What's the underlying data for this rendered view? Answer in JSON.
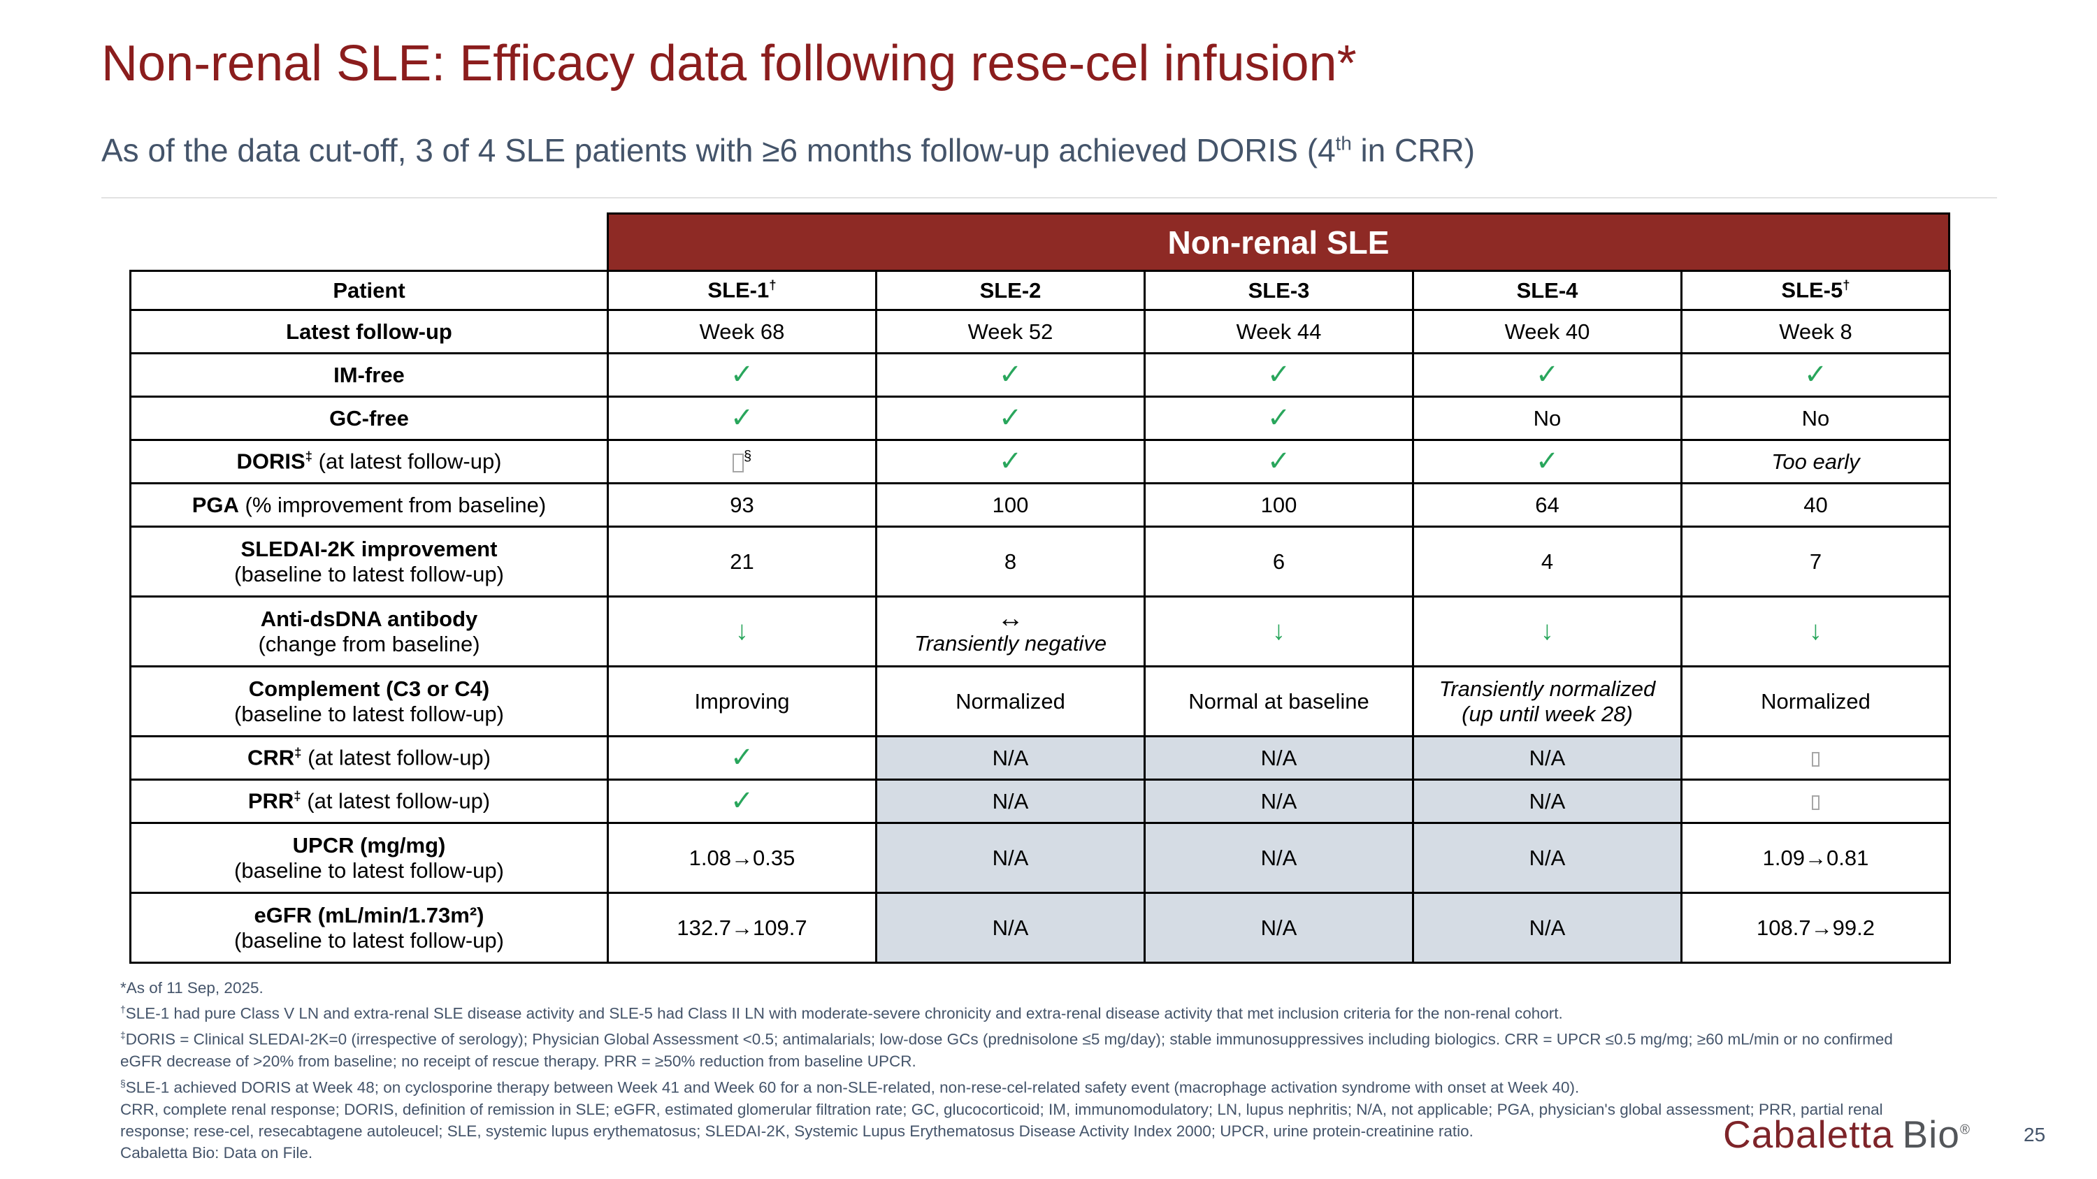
{
  "header": {
    "title": "Non-renal SLE: Efficacy data following rese-cel infusion*",
    "subtitle_pre": "As of the data cut-off, 3 of 4 SLE patients with ≥6 months follow-up achieved DORIS (4",
    "subtitle_sup": "th",
    "subtitle_post": " in CRR)"
  },
  "colors": {
    "title_red": "#8B1D1D",
    "banner_red": "#8E2A25",
    "slate_text": "#44546A",
    "check_green": "#29A65C",
    "na_shade": "#D5DCE4"
  },
  "table": {
    "banner": "Non-renal SLE",
    "columns": [
      {
        "name": "patient",
        "label": "Patient",
        "sup": ""
      },
      {
        "name": "sle-1",
        "label": "SLE-1",
        "sup": "†"
      },
      {
        "name": "sle-2",
        "label": "SLE-2",
        "sup": ""
      },
      {
        "name": "sle-3",
        "label": "SLE-3",
        "sup": ""
      },
      {
        "name": "sle-4",
        "label": "SLE-4",
        "sup": ""
      },
      {
        "name": "sle-5",
        "label": "SLE-5",
        "sup": "†"
      }
    ],
    "rows": [
      {
        "id": "latest-follow-up",
        "tall": false,
        "label": {
          "b": "Latest follow-up",
          "s": "",
          "r": "",
          "r2": ""
        },
        "cells": [
          {
            "t": "text",
            "v": "Week 68"
          },
          {
            "t": "text",
            "v": "Week 52"
          },
          {
            "t": "text",
            "v": "Week 44"
          },
          {
            "t": "text",
            "v": "Week 40"
          },
          {
            "t": "text",
            "v": "Week 8"
          }
        ]
      },
      {
        "id": "im-free",
        "tall": false,
        "label": {
          "b": "IM-free",
          "s": "",
          "r": "",
          "r2": ""
        },
        "cells": [
          {
            "t": "check",
            "v": "✓"
          },
          {
            "t": "check",
            "v": "✓"
          },
          {
            "t": "check",
            "v": "✓"
          },
          {
            "t": "check",
            "v": "✓"
          },
          {
            "t": "check",
            "v": "✓"
          }
        ]
      },
      {
        "id": "gc-free",
        "tall": false,
        "label": {
          "b": "GC-free",
          "s": "",
          "r": "",
          "r2": ""
        },
        "cells": [
          {
            "t": "check",
            "v": "✓"
          },
          {
            "t": "check",
            "v": "✓"
          },
          {
            "t": "check",
            "v": "✓"
          },
          {
            "t": "text",
            "v": "No"
          },
          {
            "t": "text",
            "v": "No"
          }
        ]
      },
      {
        "id": "doris",
        "tall": false,
        "label": {
          "b": "DORIS",
          "s": "‡",
          "r": " (at latest follow-up)",
          "r2": ""
        },
        "cells": [
          {
            "t": "boxsup",
            "v": "□",
            "sup": "§"
          },
          {
            "t": "check",
            "v": "✓"
          },
          {
            "t": "check",
            "v": "✓"
          },
          {
            "t": "check",
            "v": "✓"
          },
          {
            "t": "text",
            "v": "Too early",
            "italic": true
          }
        ]
      },
      {
        "id": "pga",
        "tall": false,
        "label": {
          "b": "PGA",
          "s": "",
          "r": " (% improvement from baseline)",
          "r2": ""
        },
        "cells": [
          {
            "t": "text",
            "v": "93"
          },
          {
            "t": "text",
            "v": "100"
          },
          {
            "t": "text",
            "v": "100"
          },
          {
            "t": "text",
            "v": "64"
          },
          {
            "t": "text",
            "v": "40"
          }
        ]
      },
      {
        "id": "sledai-2k",
        "tall": true,
        "label": {
          "b": "SLEDAI-2K improvement",
          "s": "",
          "r": "",
          "r2": "(baseline to latest follow-up)"
        },
        "cells": [
          {
            "t": "text",
            "v": "21"
          },
          {
            "t": "text",
            "v": "8"
          },
          {
            "t": "text",
            "v": "6"
          },
          {
            "t": "text",
            "v": "4"
          },
          {
            "t": "text",
            "v": "7"
          }
        ]
      },
      {
        "id": "anti-dsdna",
        "tall": true,
        "label": {
          "b": "Anti-dsDNA antibody",
          "s": "",
          "r": "",
          "r2": "(change from baseline)"
        },
        "cells": [
          {
            "t": "down",
            "v": "↓"
          },
          {
            "t": "lrstack",
            "v": "↔",
            "v2": "Transiently negative"
          },
          {
            "t": "down",
            "v": "↓"
          },
          {
            "t": "down",
            "v": "↓"
          },
          {
            "t": "down",
            "v": "↓"
          }
        ]
      },
      {
        "id": "complement",
        "tall": true,
        "label": {
          "b": "Complement (C3 or C4)",
          "s": "",
          "r": "",
          "r2": "(baseline to latest follow-up)"
        },
        "cells": [
          {
            "t": "text",
            "v": "Improving"
          },
          {
            "t": "text",
            "v": "Normalized"
          },
          {
            "t": "text",
            "v": "Normal at baseline"
          },
          {
            "t": "italic2",
            "v": "Transiently normalized",
            "v2": "(up until week 28)"
          },
          {
            "t": "text",
            "v": "Normalized"
          }
        ]
      },
      {
        "id": "crr",
        "tall": false,
        "label": {
          "b": "CRR",
          "s": "‡",
          "r": " (at latest follow-up)",
          "r2": ""
        },
        "cells": [
          {
            "t": "check",
            "v": "✓"
          },
          {
            "t": "text",
            "v": "N/A",
            "shaded": true
          },
          {
            "t": "text",
            "v": "N/A",
            "shaded": true
          },
          {
            "t": "text",
            "v": "N/A",
            "shaded": true
          },
          {
            "t": "box",
            "v": "□"
          }
        ]
      },
      {
        "id": "prr",
        "tall": false,
        "label": {
          "b": "PRR",
          "s": "‡",
          "r": " (at latest follow-up)",
          "r2": ""
        },
        "cells": [
          {
            "t": "check",
            "v": "✓"
          },
          {
            "t": "text",
            "v": "N/A",
            "shaded": true
          },
          {
            "t": "text",
            "v": "N/A",
            "shaded": true
          },
          {
            "t": "text",
            "v": "N/A",
            "shaded": true
          },
          {
            "t": "box",
            "v": "□"
          }
        ]
      },
      {
        "id": "upcr",
        "tall": true,
        "label": {
          "b": "UPCR (mg/mg)",
          "s": "",
          "r": "",
          "r2": "(baseline to latest follow-up)"
        },
        "cells": [
          {
            "t": "text",
            "v": "1.08→0.35"
          },
          {
            "t": "text",
            "v": "N/A",
            "shaded": true
          },
          {
            "t": "text",
            "v": "N/A",
            "shaded": true
          },
          {
            "t": "text",
            "v": "N/A",
            "shaded": true
          },
          {
            "t": "text",
            "v": "1.09→0.81"
          }
        ]
      },
      {
        "id": "egfr",
        "tall": true,
        "label": {
          "b": "eGFR (mL/min/1.73m²)",
          "s": "",
          "r": "",
          "r2": "(baseline to latest follow-up)"
        },
        "cells": [
          {
            "t": "text",
            "v": "132.7→109.7"
          },
          {
            "t": "text",
            "v": "N/A",
            "shaded": true
          },
          {
            "t": "text",
            "v": "N/A",
            "shaded": true
          },
          {
            "t": "text",
            "v": "N/A",
            "shaded": true
          },
          {
            "t": "text",
            "v": "108.7→99.2"
          }
        ]
      }
    ]
  },
  "footnotes": [
    {
      "marker": "",
      "text": "*As of 11 Sep, 2025."
    },
    {
      "marker": "†",
      "text": "SLE-1 had pure Class V LN and extra-renal SLE disease activity and SLE-5 had Class II LN with moderate-severe chronicity and extra-renal disease activity that met inclusion criteria for the non-renal cohort."
    },
    {
      "marker": "‡",
      "text": "DORIS = Clinical SLEDAI-2K=0 (irrespective of serology); Physician Global Assessment <0.5; antimalarials; low-dose GCs (prednisolone ≤5 mg/day); stable immunosuppressives including biologics. CRR = UPCR ≤0.5 mg/mg; ≥60 mL/min or no confirmed eGFR decrease of >20% from baseline; no receipt of rescue therapy. PRR = ≥50% reduction from baseline UPCR."
    },
    {
      "marker": "§",
      "text": "SLE-1 achieved DORIS at Week 48; on cyclosporine therapy between Week 41 and Week 60 for a non-SLE-related, non-rese-cel-related safety event (macrophage activation syndrome with onset at Week 40)."
    },
    {
      "marker": "",
      "text": "CRR, complete renal response; DORIS, definition of remission in SLE; eGFR, estimated glomerular filtration rate; GC, glucocorticoid; IM, immunomodulatory; LN, lupus nephritis; N/A, not applicable; PGA, physician's global assessment; PRR, partial renal response; rese-cel, resecabtagene autoleucel; SLE, systemic lupus erythematosus; SLEDAI-2K, Systemic Lupus Erythematosus Disease Activity Index 2000; UPCR, urine protein-creatinine ratio."
    },
    {
      "marker": "",
      "text": "Cabaletta Bio: Data on File."
    }
  ],
  "footer": {
    "logo_part1": "Cabaletta",
    "logo_part2": "Bio",
    "logo_reg": "®",
    "page_number": "25"
  }
}
